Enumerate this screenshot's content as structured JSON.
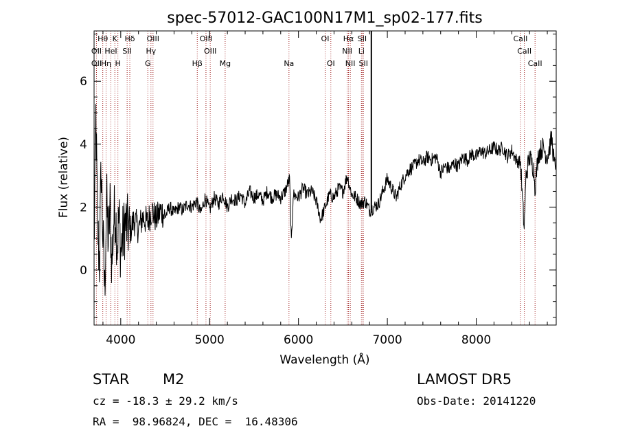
{
  "chart_data": {
    "type": "line",
    "title": "spec-57012-GAC100N17M1_sp02-177.fits",
    "xlabel": "Wavelength (Å)",
    "ylabel": "Flux (relative)",
    "xlim": [
      3700,
      8900
    ],
    "ylim": [
      -1.75,
      7.6
    ],
    "x_ticks": [
      4000,
      5000,
      6000,
      7000,
      8000
    ],
    "y_ticks": [
      0,
      2,
      4,
      6
    ],
    "grid": false,
    "line_color": "#000000",
    "marker_color": "#a52a2a",
    "spectrum_anchors": [
      [
        3700,
        0.6
      ],
      [
        3720,
        4.9
      ],
      [
        3740,
        1.4
      ],
      [
        3760,
        0.2
      ],
      [
        3780,
        3.3
      ],
      [
        3800,
        1.0
      ],
      [
        3820,
        -0.7
      ],
      [
        3840,
        2.3
      ],
      [
        3860,
        0.9
      ],
      [
        3880,
        2.0
      ],
      [
        3900,
        0.1
      ],
      [
        3920,
        1.6
      ],
      [
        3940,
        1.9
      ],
      [
        3960,
        0.8
      ],
      [
        3980,
        1.7
      ],
      [
        4000,
        0.6
      ],
      [
        4050,
        1.5
      ],
      [
        4100,
        1.2
      ],
      [
        4150,
        1.6
      ],
      [
        4200,
        1.3
      ],
      [
        4250,
        1.7
      ],
      [
        4300,
        1.5
      ],
      [
        4350,
        1.9
      ],
      [
        4400,
        1.6
      ],
      [
        4450,
        1.9
      ],
      [
        4500,
        1.7
      ],
      [
        4550,
        2.0
      ],
      [
        4600,
        1.8
      ],
      [
        4650,
        2.0
      ],
      [
        4700,
        1.9
      ],
      [
        4750,
        2.1
      ],
      [
        4800,
        2.0
      ],
      [
        4850,
        2.2
      ],
      [
        4900,
        1.8
      ],
      [
        4950,
        2.3
      ],
      [
        5000,
        1.9
      ],
      [
        5050,
        2.3
      ],
      [
        5100,
        2.1
      ],
      [
        5150,
        2.4
      ],
      [
        5200,
        2.0
      ],
      [
        5250,
        2.3
      ],
      [
        5300,
        2.2
      ],
      [
        5350,
        2.4
      ],
      [
        5400,
        2.1
      ],
      [
        5450,
        2.5
      ],
      [
        5500,
        2.3
      ],
      [
        5550,
        2.4
      ],
      [
        5600,
        2.2
      ],
      [
        5650,
        2.5
      ],
      [
        5700,
        2.3
      ],
      [
        5750,
        2.4
      ],
      [
        5800,
        2.3
      ],
      [
        5850,
        2.5
      ],
      [
        5900,
        2.9
      ],
      [
        5920,
        0.8
      ],
      [
        5940,
        2.4
      ],
      [
        6000,
        2.3
      ],
      [
        6050,
        2.6
      ],
      [
        6100,
        2.4
      ],
      [
        6150,
        2.5
      ],
      [
        6200,
        2.2
      ],
      [
        6250,
        1.6
      ],
      [
        6300,
        2.0
      ],
      [
        6350,
        2.4
      ],
      [
        6400,
        2.3
      ],
      [
        6450,
        2.6
      ],
      [
        6500,
        2.5
      ],
      [
        6550,
        3.0
      ],
      [
        6580,
        2.6
      ],
      [
        6600,
        2.4
      ],
      [
        6650,
        2.3
      ],
      [
        6700,
        2.1
      ],
      [
        6750,
        2.2
      ],
      [
        6800,
        1.9
      ],
      [
        6850,
        2.0
      ],
      [
        6900,
        2.1
      ],
      [
        6950,
        2.5
      ],
      [
        7000,
        2.9
      ],
      [
        7050,
        2.6
      ],
      [
        7100,
        2.3
      ],
      [
        7150,
        2.7
      ],
      [
        7200,
        3.0
      ],
      [
        7250,
        3.2
      ],
      [
        7300,
        3.3
      ],
      [
        7350,
        3.5
      ],
      [
        7400,
        3.4
      ],
      [
        7450,
        3.6
      ],
      [
        7500,
        3.5
      ],
      [
        7550,
        3.6
      ],
      [
        7600,
        3.1
      ],
      [
        7650,
        3.3
      ],
      [
        7700,
        3.2
      ],
      [
        7750,
        3.4
      ],
      [
        7800,
        3.3
      ],
      [
        7850,
        3.6
      ],
      [
        7900,
        3.5
      ],
      [
        7950,
        3.7
      ],
      [
        8000,
        3.6
      ],
      [
        8050,
        3.8
      ],
      [
        8100,
        3.7
      ],
      [
        8150,
        3.8
      ],
      [
        8200,
        3.9
      ],
      [
        8250,
        3.8
      ],
      [
        8300,
        3.9
      ],
      [
        8350,
        3.6
      ],
      [
        8400,
        3.8
      ],
      [
        8450,
        3.5
      ],
      [
        8500,
        3.4
      ],
      [
        8520,
        2.2
      ],
      [
        8540,
        1.3
      ],
      [
        8560,
        3.0
      ],
      [
        8600,
        3.6
      ],
      [
        8650,
        3.2
      ],
      [
        8660,
        2.6
      ],
      [
        8700,
        3.7
      ],
      [
        8750,
        3.9
      ],
      [
        8800,
        3.6
      ],
      [
        8850,
        4.2
      ],
      [
        8880,
        3.3
      ],
      [
        8900,
        3.5
      ]
    ],
    "spike": {
      "x": 6820,
      "from": 1.9,
      "to": 7.6
    },
    "line_markers": [
      {
        "label": "Hθ",
        "x": 3798,
        "row": 0
      },
      {
        "label": "K",
        "x": 3934,
        "row": 0
      },
      {
        "label": "Hδ",
        "x": 4102,
        "row": 0
      },
      {
        "label": "OIII",
        "x": 4363,
        "row": 0
      },
      {
        "label": "OIII",
        "x": 4959,
        "row": 0
      },
      {
        "label": "OI",
        "x": 6300,
        "row": 0
      },
      {
        "label": "Hα",
        "x": 6563,
        "row": 0
      },
      {
        "label": "SII",
        "x": 6716,
        "row": 0
      },
      {
        "label": "CaII",
        "x": 8498,
        "row": 0
      },
      {
        "label": "OII",
        "x": 3727,
        "row": 1
      },
      {
        "label": "HeI",
        "x": 3889,
        "row": 1
      },
      {
        "label": "SII",
        "x": 4072,
        "row": 1
      },
      {
        "label": "Hγ",
        "x": 4340,
        "row": 1
      },
      {
        "label": "OIII",
        "x": 5007,
        "row": 1
      },
      {
        "label": "NII",
        "x": 6548,
        "row": 1
      },
      {
        "label": "Li",
        "x": 6708,
        "row": 1
      },
      {
        "label": "CaII",
        "x": 8542,
        "row": 1
      },
      {
        "label": "OII",
        "x": 3727,
        "row": 2
      },
      {
        "label": "Hη",
        "x": 3835,
        "row": 2
      },
      {
        "label": "H",
        "x": 3968,
        "row": 2
      },
      {
        "label": "G",
        "x": 4305,
        "row": 2
      },
      {
        "label": "Hβ",
        "x": 4861,
        "row": 2
      },
      {
        "label": "Mg",
        "x": 5175,
        "row": 2
      },
      {
        "label": "Na",
        "x": 5893,
        "row": 2
      },
      {
        "label": "OI",
        "x": 6364,
        "row": 2
      },
      {
        "label": "NII",
        "x": 6583,
        "row": 2
      },
      {
        "label": "SII",
        "x": 6731,
        "row": 2
      },
      {
        "label": "CaII",
        "x": 8662,
        "row": 2
      }
    ]
  },
  "info": {
    "object_class": "STAR",
    "subclass": "M2",
    "survey": "LAMOST DR5",
    "cz": "cz = -18.3 ± 29.2 km/s",
    "obs_date": "Obs-Date: 20141220",
    "coords": "RA =  98.96824, DEC =  16.48306"
  }
}
